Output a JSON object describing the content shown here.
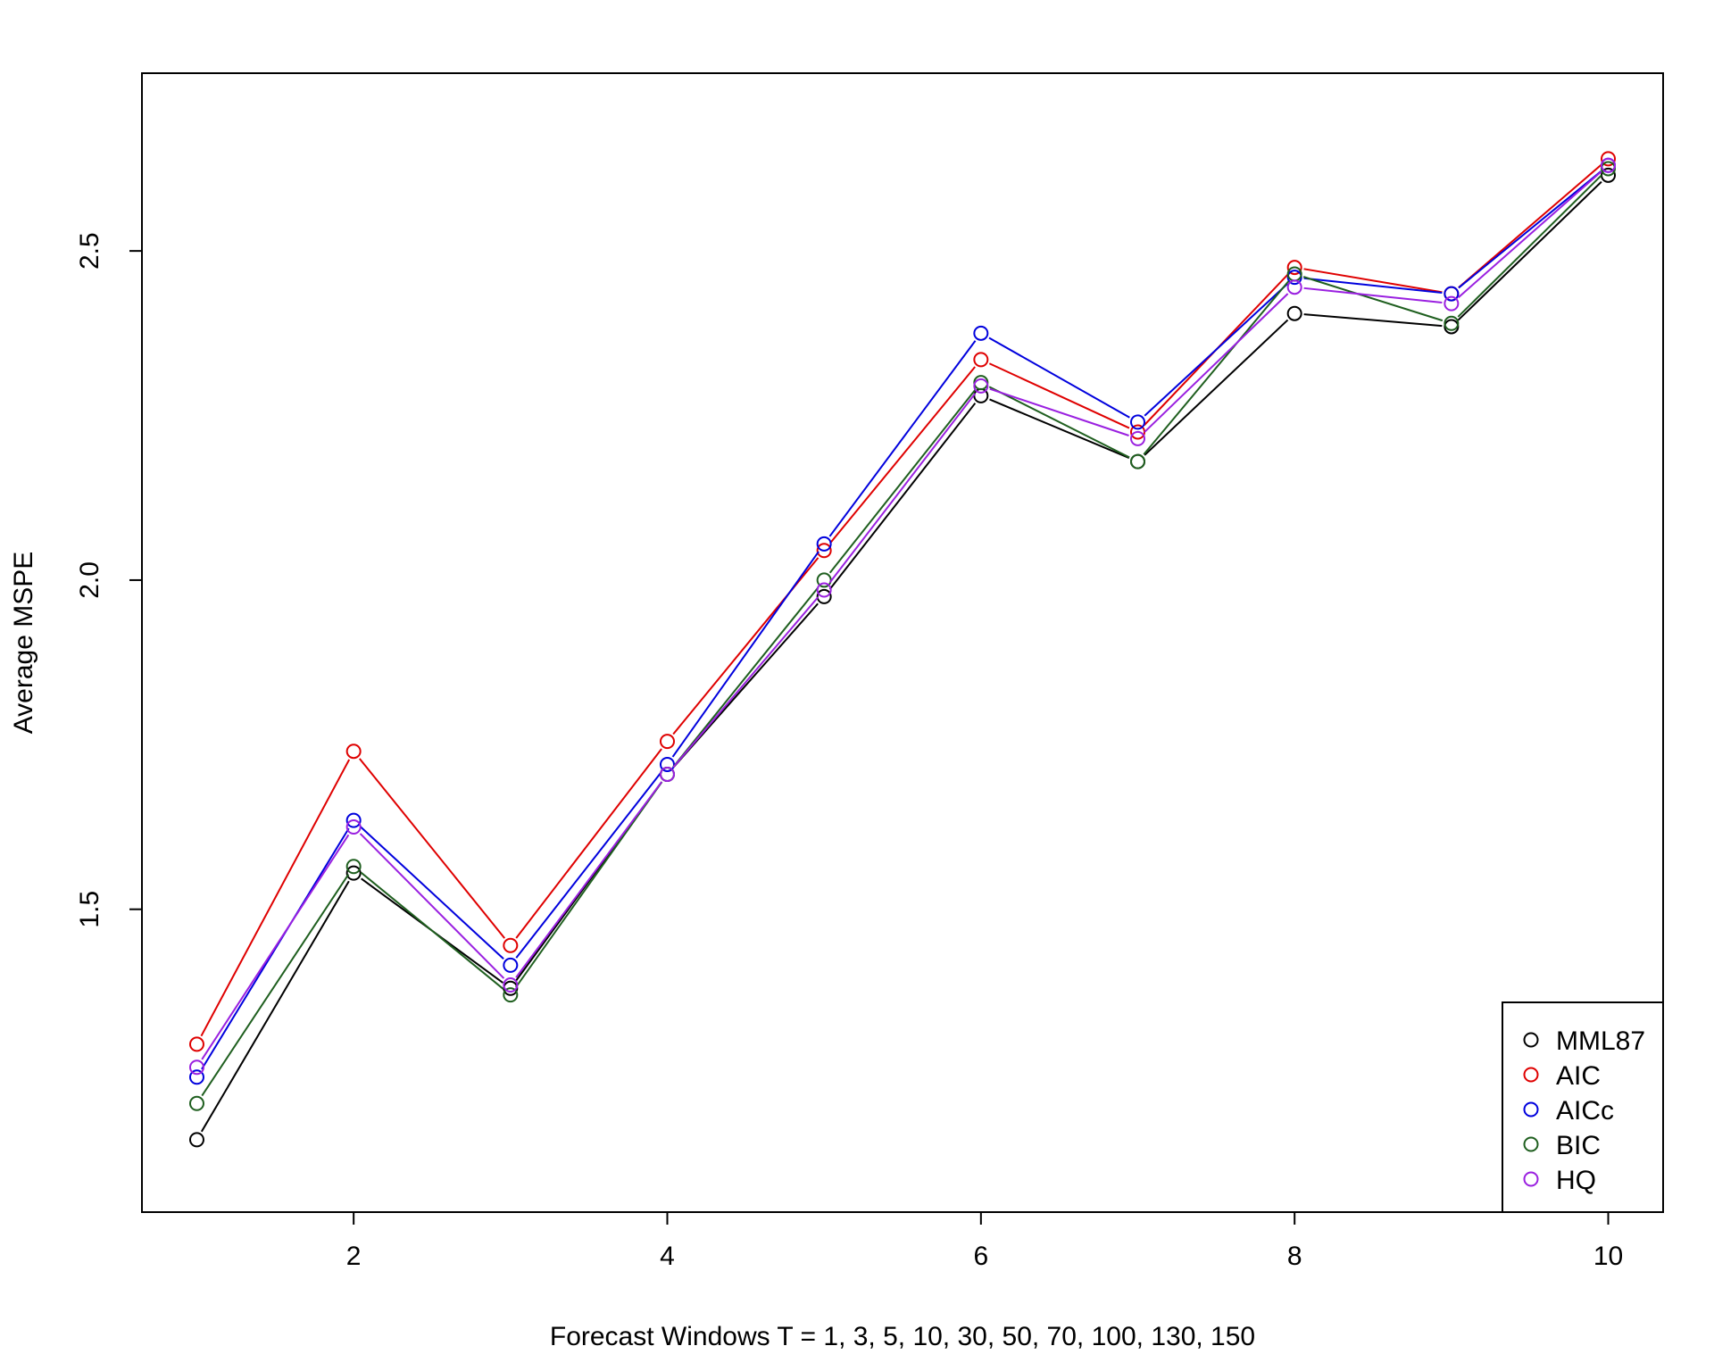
{
  "chart_data": {
    "type": "line",
    "xlabel": "Forecast Windows T = 1, 3, 5, 10, 30, 50, 70, 100, 130, 150",
    "ylabel": "Average MSPE",
    "x": [
      1,
      2,
      3,
      4,
      5,
      6,
      7,
      8,
      9,
      10
    ],
    "xlim": [
      0.65,
      10.35
    ],
    "ylim": [
      1.04,
      2.77
    ],
    "xticks": [
      2,
      4,
      6,
      8,
      10
    ],
    "xtick_labels": [
      "2",
      "4",
      "6",
      "8",
      "10"
    ],
    "yticks": [
      1.5,
      2.0,
      2.5
    ],
    "ytick_labels": [
      "1.5",
      "2.0",
      "2.5"
    ],
    "grid": false,
    "legend_position": "bottom-right",
    "markers": "open-circle",
    "series": [
      {
        "name": "MML87",
        "color": "#000000",
        "values": [
          1.15,
          1.555,
          1.38,
          1.705,
          1.975,
          2.28,
          2.18,
          2.405,
          2.385,
          2.615
        ]
      },
      {
        "name": "AIC",
        "color": "#DF0000",
        "values": [
          1.295,
          1.74,
          1.445,
          1.755,
          2.045,
          2.335,
          2.225,
          2.475,
          2.435,
          2.64
        ]
      },
      {
        "name": "AICc",
        "color": "#0000DD",
        "values": [
          1.245,
          1.635,
          1.415,
          1.72,
          2.055,
          2.375,
          2.24,
          2.46,
          2.435,
          2.63
        ]
      },
      {
        "name": "BIC",
        "color": "#1F5F1F",
        "values": [
          1.205,
          1.565,
          1.37,
          1.705,
          2.0,
          2.3,
          2.18,
          2.465,
          2.39,
          2.625
        ]
      },
      {
        "name": "HQ",
        "color": "#9A20E0",
        "values": [
          1.26,
          1.625,
          1.385,
          1.705,
          1.985,
          2.295,
          2.215,
          2.445,
          2.42,
          2.63
        ]
      }
    ]
  }
}
